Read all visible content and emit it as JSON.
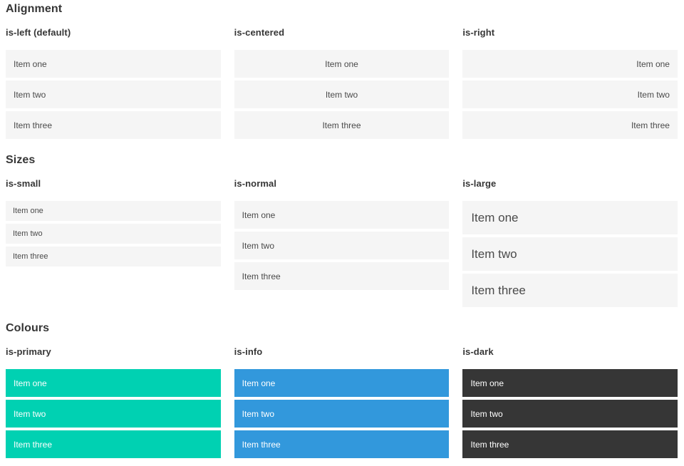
{
  "colors": {
    "primary": "#00d1b2",
    "info": "#3298dc",
    "dark": "#363636",
    "item_background": "#f5f5f5",
    "item_text": "#4a4a4a",
    "heading_text": "#363636",
    "light_text": "#ffffff"
  },
  "sections": [
    {
      "title": "Alignment",
      "columns": [
        {
          "label": "is-left (default)",
          "variant": "left",
          "items": [
            "Item one",
            "Item two",
            "Item three"
          ]
        },
        {
          "label": "is-centered",
          "variant": "centered",
          "items": [
            "Item one",
            "Item two",
            "Item three"
          ]
        },
        {
          "label": "is-right",
          "variant": "right",
          "items": [
            "Item one",
            "Item two",
            "Item three"
          ]
        }
      ]
    },
    {
      "title": "Sizes",
      "columns": [
        {
          "label": "is-small",
          "variant": "small",
          "items": [
            "Item one",
            "Item two",
            "Item three"
          ]
        },
        {
          "label": "is-normal",
          "variant": "normal",
          "items": [
            "Item one",
            "Item two",
            "Item three"
          ]
        },
        {
          "label": "is-large",
          "variant": "large",
          "items": [
            "Item one",
            "Item two",
            "Item three"
          ]
        }
      ]
    },
    {
      "title": "Colours",
      "columns": [
        {
          "label": "is-primary",
          "variant": "primary",
          "items": [
            "Item one",
            "Item two",
            "Item three"
          ]
        },
        {
          "label": "is-info",
          "variant": "info",
          "items": [
            "Item one",
            "Item two",
            "Item three"
          ]
        },
        {
          "label": "is-dark",
          "variant": "dark",
          "items": [
            "Item one",
            "Item two",
            "Item three"
          ]
        }
      ]
    }
  ]
}
